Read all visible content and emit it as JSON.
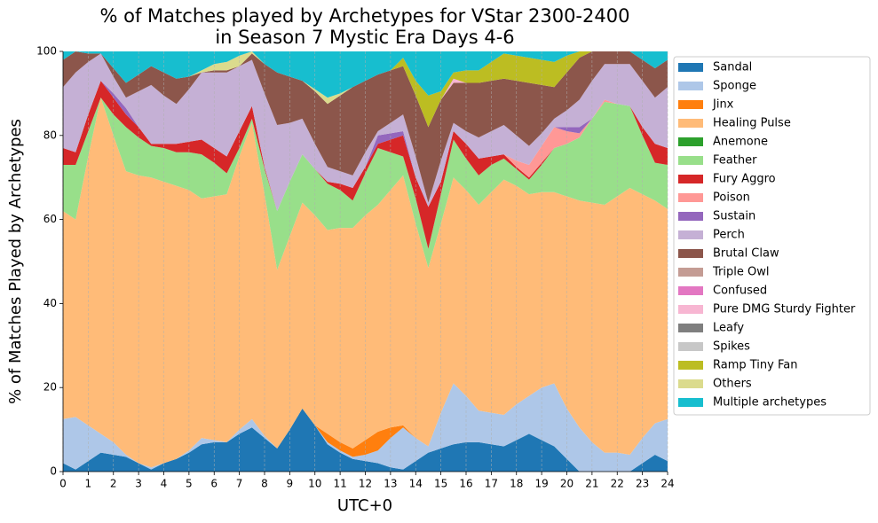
{
  "chart_data": {
    "type": "stacked_area",
    "title": [
      "% of Matches played by Archetypes for VStar 2300-2400",
      "in Season 7 Mystic Era Days 4-6"
    ],
    "xlabel": "UTC+0",
    "ylabel": "% of Matches Played by Archetypes",
    "x": [
      0,
      0.5,
      1,
      1.5,
      2,
      2.5,
      3,
      3.5,
      4,
      4.5,
      5,
      5.5,
      6,
      6.5,
      7,
      7.5,
      8,
      8.5,
      9,
      9.5,
      10,
      10.5,
      11,
      11.5,
      12,
      12.5,
      13,
      13.5,
      14,
      14.5,
      15,
      15.5,
      16,
      16.5,
      17,
      17.5,
      18,
      18.5,
      19,
      19.5,
      20,
      20.5,
      21,
      21.5,
      22,
      22.5,
      23,
      23.5,
      24
    ],
    "xlim": [
      0,
      24
    ],
    "xticks": [
      0,
      1,
      2,
      3,
      4,
      5,
      6,
      7,
      8,
      9,
      10,
      11,
      12,
      13,
      14,
      15,
      16,
      17,
      18,
      19,
      20,
      21,
      22,
      23,
      24
    ],
    "ylim": [
      0,
      100
    ],
    "yticks": [
      0,
      20,
      40,
      60,
      80,
      100
    ],
    "grid": "x",
    "legend": "outside right",
    "series": [
      {
        "name": "Sandal",
        "color": "#1f77b4",
        "values": [
          2,
          0.5,
          2.5,
          4.5,
          4,
          3.5,
          2,
          0.5,
          2,
          3,
          4.5,
          6.5,
          7,
          7,
          9,
          10.5,
          8,
          5.5,
          10,
          15,
          11,
          6.5,
          4.5,
          3,
          2.5,
          2,
          1,
          0.5,
          2.5,
          4.5,
          5.5,
          6.5,
          7,
          7,
          6.5,
          6,
          7.5,
          9,
          7.5,
          6,
          3,
          0,
          0,
          0,
          0,
          0,
          2,
          4,
          2.5
        ]
      },
      {
        "name": "Sponge",
        "color": "#aec7e8",
        "values": [
          10.5,
          12.5,
          8.5,
          4.5,
          3,
          0.5,
          0,
          0.5,
          0,
          0,
          0.5,
          1.5,
          0.5,
          0,
          1,
          2,
          0.5,
          0,
          0,
          0,
          0,
          0.5,
          0.5,
          0.5,
          1.5,
          3,
          7,
          10,
          5.5,
          1.5,
          8.5,
          14.5,
          11,
          7.5,
          7.5,
          7.5,
          8.5,
          9,
          12.5,
          15,
          12,
          10.5,
          7,
          4.5,
          4.5,
          4,
          6,
          7.5,
          10
        ]
      },
      {
        "name": "Jinx",
        "color": "#ff7f0e",
        "values": [
          0,
          0,
          0,
          0,
          0,
          0,
          0,
          0,
          0,
          0,
          0,
          0,
          0,
          0,
          0,
          0,
          0,
          0,
          0,
          0,
          0,
          2,
          2,
          2,
          3.5,
          4.5,
          2.5,
          0.5,
          0,
          0,
          0,
          0,
          0,
          0,
          0,
          0,
          0,
          0,
          0,
          0,
          0,
          0,
          0,
          0,
          0,
          0,
          0,
          0,
          0
        ]
      },
      {
        "name": "Healing Pulse",
        "color": "#ffbb78",
        "values": [
          49.5,
          47,
          64,
          80,
          73,
          67.5,
          68.5,
          69,
          67,
          65,
          62,
          57,
          58,
          59,
          65,
          70.5,
          57.5,
          42.5,
          46,
          49,
          50,
          48.5,
          51,
          52.5,
          53.5,
          54,
          56.5,
          59.5,
          51,
          42.5,
          45,
          49,
          49,
          49,
          52.5,
          56,
          52,
          48,
          46.5,
          45.5,
          50.5,
          54,
          57,
          59,
          61,
          63.5,
          58,
          53,
          50
        ]
      },
      {
        "name": "Anemone",
        "color": "#2ca02c",
        "values": [
          0,
          0,
          0,
          0,
          0,
          0,
          0,
          0,
          0,
          0,
          0,
          0,
          0,
          0,
          0,
          0,
          0,
          0,
          0,
          0,
          0,
          0,
          0,
          0,
          0,
          0,
          0,
          0,
          0,
          0,
          0,
          0,
          0,
          0,
          0,
          0,
          0,
          0,
          0,
          0,
          0,
          0,
          0,
          0,
          0,
          0,
          0,
          0,
          0
        ]
      },
      {
        "name": "Feather",
        "color": "#98df8a",
        "values": [
          11,
          13,
          6,
          0,
          5,
          10.5,
          9,
          7.5,
          8,
          8,
          9,
          10.5,
          8,
          5,
          2,
          1,
          6,
          14,
          13,
          11.5,
          11,
          11,
          9,
          6.5,
          10,
          13.5,
          9,
          4.5,
          6,
          4.5,
          7,
          9,
          7.5,
          7,
          6.5,
          5,
          4,
          3.5,
          6.5,
          10.5,
          12.5,
          15,
          20,
          24.5,
          22,
          19.5,
          14,
          9,
          10.5
        ]
      },
      {
        "name": "Fury Aggro",
        "color": "#d62728",
        "values": [
          4,
          3,
          4,
          4,
          4,
          3,
          2.5,
          0.5,
          1,
          2,
          2.5,
          3.5,
          3.5,
          4,
          4,
          3,
          0.5,
          0,
          0,
          0,
          0,
          0.5,
          1.5,
          3,
          1.5,
          1,
          3,
          5,
          5,
          10,
          3,
          2,
          3.5,
          4,
          2,
          1,
          0.5,
          0.5,
          0.5,
          0,
          0,
          0,
          0,
          0,
          0,
          0,
          2,
          4.5,
          4
        ]
      },
      {
        "name": "Poison",
        "color": "#ff9896",
        "values": [
          0,
          0,
          0,
          0,
          0,
          0,
          0,
          0,
          0,
          0,
          0,
          0,
          0,
          0,
          0,
          0,
          0,
          0,
          0,
          0,
          0,
          0,
          0,
          0,
          0,
          0,
          0,
          0,
          0,
          0,
          0,
          0,
          0,
          0,
          0,
          0,
          1.5,
          3,
          4,
          5,
          3,
          1,
          0,
          0.5,
          0,
          0,
          0,
          0,
          0
        ]
      },
      {
        "name": "Sustain",
        "color": "#9467bd",
        "values": [
          0,
          0,
          0,
          0,
          1,
          1.5,
          0,
          0,
          0,
          0,
          0,
          0,
          0,
          0,
          0,
          0,
          0,
          0,
          0,
          0,
          0,
          0,
          0,
          0,
          0,
          2,
          1.5,
          1,
          0,
          0,
          0,
          0,
          0,
          0,
          0,
          0,
          0,
          0,
          0,
          0,
          1,
          1.5,
          0,
          0,
          0,
          0,
          0,
          0,
          0
        ]
      },
      {
        "name": "Perch",
        "color": "#c5b0d5",
        "values": [
          14.5,
          19,
          12.5,
          6.5,
          4,
          2.5,
          8.5,
          14,
          11.5,
          9.5,
          12.5,
          16,
          18,
          20,
          15.5,
          11,
          17.5,
          20.5,
          14,
          8.5,
          6,
          3.5,
          3,
          3,
          3.5,
          1,
          2.5,
          4,
          5,
          1,
          5,
          2,
          3,
          5,
          6,
          7,
          6,
          4.5,
          3,
          2,
          4,
          6.5,
          9,
          8.5,
          9.5,
          10,
          11,
          11,
          14.5
        ]
      },
      {
        "name": "Brutal Claw",
        "color": "#8c564b",
        "values": [
          6.5,
          5,
          2,
          0,
          2,
          3.5,
          4,
          4.5,
          5.5,
          6,
          3,
          0,
          0.5,
          0.5,
          0,
          1.5,
          7,
          12.5,
          11,
          9,
          12.5,
          15,
          18,
          21,
          17,
          13.5,
          12.5,
          11.5,
          14.5,
          18,
          14.5,
          9.5,
          11.5,
          13,
          12,
          11,
          13,
          15,
          11.5,
          7.5,
          9,
          10,
          7,
          3,
          3,
          3,
          5,
          7,
          6.5
        ]
      },
      {
        "name": "Triple Owl",
        "color": "#c49c94",
        "values": [
          0,
          0,
          0,
          0,
          0,
          0,
          0,
          0,
          0,
          0,
          0,
          0,
          0,
          0,
          0,
          0,
          0,
          0,
          0,
          0,
          0,
          0,
          0,
          0,
          0,
          0,
          0,
          0,
          0,
          0,
          0,
          0,
          0,
          0,
          0,
          0,
          0,
          0,
          0,
          0,
          0,
          0,
          0,
          0,
          0,
          0,
          0,
          0,
          0
        ]
      },
      {
        "name": "Confused",
        "color": "#e377c2",
        "values": [
          0,
          0,
          0,
          0,
          0,
          0,
          0,
          0,
          0,
          0,
          0,
          0,
          0,
          0,
          0,
          0,
          0,
          0,
          0,
          0,
          0,
          0,
          0,
          0,
          0,
          0,
          0,
          0,
          0,
          0,
          0,
          0,
          0,
          0,
          0,
          0,
          0,
          0,
          0,
          0,
          0,
          0,
          0,
          0,
          0,
          0,
          0,
          0,
          0
        ]
      },
      {
        "name": "Pure DMG Sturdy Fighter",
        "color": "#f7b6d2",
        "values": [
          0,
          0,
          0,
          0,
          0,
          0,
          0,
          0,
          0,
          0,
          0,
          0,
          0,
          0,
          0,
          0,
          0,
          0,
          0,
          0,
          0,
          0,
          0,
          0,
          0,
          0,
          0,
          0,
          0,
          0,
          0,
          1,
          0,
          0,
          0,
          0,
          0,
          0,
          0,
          0,
          0,
          0,
          0,
          0,
          0,
          0,
          0,
          0,
          0
        ]
      },
      {
        "name": "Leafy",
        "color": "#7f7f7f",
        "values": [
          0,
          0,
          0,
          0,
          0,
          0,
          0,
          0,
          0,
          0,
          0,
          0,
          0,
          0,
          0,
          0,
          0,
          0,
          0,
          0,
          0,
          0,
          0,
          0,
          0,
          0,
          0,
          0,
          0,
          0,
          0,
          0,
          0,
          0,
          0,
          0,
          0,
          0,
          0,
          0,
          0,
          0,
          0,
          0,
          0,
          0,
          0,
          0,
          0
        ]
      },
      {
        "name": "Spikes",
        "color": "#c7c7c7",
        "values": [
          0,
          0,
          0,
          0,
          0,
          0,
          0,
          0,
          0,
          0,
          0,
          0,
          0,
          0,
          0,
          0,
          0,
          0,
          0,
          0,
          0,
          0,
          0,
          0,
          0,
          0,
          0,
          0,
          0,
          0,
          0,
          0,
          0,
          0,
          0,
          0,
          0,
          0,
          0,
          0,
          0,
          0,
          0,
          0,
          0,
          0,
          0,
          0,
          0
        ]
      },
      {
        "name": "Ramp Tiny Fan",
        "color": "#bcbd22",
        "values": [
          0,
          0,
          0,
          0,
          0,
          0,
          0,
          0,
          0,
          0,
          0,
          0,
          0,
          0,
          0,
          0,
          0,
          0,
          0,
          0,
          0,
          0,
          0,
          0,
          0,
          0,
          0,
          2,
          3.5,
          7.5,
          2,
          1.5,
          3,
          3,
          4.5,
          6,
          6,
          6,
          6,
          6,
          4,
          1.5,
          0,
          0,
          0,
          0,
          0,
          0,
          0
        ]
      },
      {
        "name": "Others",
        "color": "#dbdb8d",
        "values": [
          0,
          0,
          0,
          0,
          0,
          0,
          0,
          0,
          0,
          0,
          0,
          0.5,
          1.5,
          2,
          2.5,
          0.5,
          0,
          0,
          0,
          0,
          0.5,
          1.5,
          0.5,
          0,
          0,
          0,
          0,
          0,
          0,
          0,
          0,
          0,
          0,
          0,
          0,
          0,
          0,
          0,
          0,
          0,
          0,
          0,
          0,
          0,
          0,
          0,
          0,
          0,
          0
        ]
      },
      {
        "name": "Multiple archetypes",
        "color": "#17becf",
        "values": [
          2,
          0,
          0.5,
          0.5,
          4,
          7.5,
          5.5,
          3.5,
          5,
          6.5,
          6,
          4.5,
          3,
          2.5,
          1,
          0,
          3,
          5,
          6,
          7,
          9,
          11,
          10,
          8.5,
          7,
          5.5,
          4.5,
          1.5,
          7,
          10.5,
          9.5,
          5,
          4.5,
          4.5,
          2.5,
          0.5,
          1,
          1.5,
          2,
          2.5,
          1,
          0,
          0,
          0,
          0,
          0,
          2,
          4,
          2
        ]
      }
    ]
  }
}
